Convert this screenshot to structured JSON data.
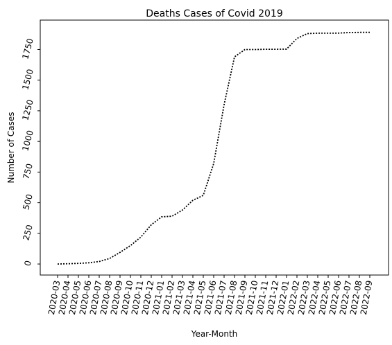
{
  "chart_data": {
    "type": "line",
    "title": "Deaths Cases of Covid 2019",
    "xlabel": "Year-Month",
    "ylabel": "Number of Cases",
    "line_color": "#000000",
    "line_style": "dotted",
    "grid": false,
    "legend": "none",
    "ylim": [
      -90,
      1990
    ],
    "yticks": [
      0,
      250,
      500,
      750,
      1000,
      1250,
      1500,
      1750
    ],
    "x": [
      "2020-03",
      "2020-04",
      "2020-05",
      "2020-06",
      "2020-07",
      "2020-08",
      "2020-09",
      "2020-10",
      "2020-11",
      "2020-12",
      "2021-01",
      "2021-02",
      "2021-03",
      "2021-04",
      "2021-05",
      "2021-06",
      "2021-07",
      "2021-08",
      "2021-09",
      "2021-10",
      "2021-11",
      "2021-12",
      "2022-01",
      "2022-02",
      "2022-03",
      "2022-04",
      "2022-05",
      "2022-06",
      "2022-07",
      "2022-08",
      "2022-09"
    ],
    "values": [
      0,
      2,
      5,
      10,
      20,
      45,
      95,
      150,
      220,
      320,
      385,
      390,
      440,
      520,
      560,
      820,
      1300,
      1690,
      1750,
      1750,
      1752,
      1752,
      1753,
      1840,
      1880,
      1883,
      1883,
      1884,
      1888,
      1890,
      1890
    ]
  }
}
